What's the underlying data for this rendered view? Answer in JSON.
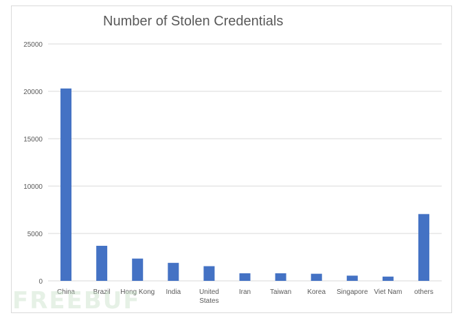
{
  "watermark": "FREEBUF",
  "colors": {
    "bar": "#4472c4",
    "grid": "#d9d9d9",
    "tick_text": "#595959"
  },
  "chart_data": {
    "type": "bar",
    "title": "Number of Stolen Credentials",
    "xlabel": "",
    "ylabel": "",
    "categories": [
      [
        "China"
      ],
      [
        "Brazil"
      ],
      [
        "Hong Kong"
      ],
      [
        "India"
      ],
      [
        "United",
        "States"
      ],
      [
        "Iran"
      ],
      [
        "Taiwan"
      ],
      [
        "Korea"
      ],
      [
        "Singapore"
      ],
      [
        "Viet Nam"
      ],
      [
        "others"
      ]
    ],
    "values": [
      20300,
      3700,
      2350,
      1900,
      1550,
      800,
      800,
      750,
      550,
      450,
      7050
    ],
    "ylim": [
      0,
      25000
    ],
    "yticks": [
      0,
      5000,
      10000,
      15000,
      20000,
      25000
    ],
    "grid": true,
    "legend": "none"
  }
}
